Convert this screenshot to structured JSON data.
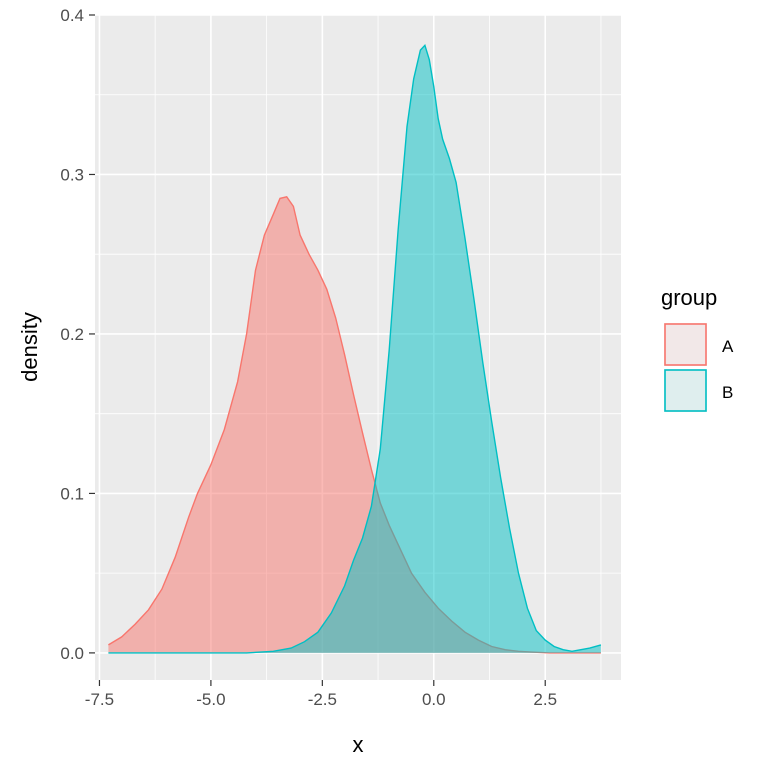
{
  "chart_data": {
    "type": "area",
    "xlabel": "x",
    "ylabel": "density",
    "xlim": [
      -7.6,
      4.2
    ],
    "ylim": [
      -0.017,
      0.4
    ],
    "x_ticks": [
      -7.5,
      -5.0,
      -2.5,
      0.0,
      2.5
    ],
    "x_tick_labels": [
      "-7.5",
      "-5.0",
      "-2.5",
      "0.0",
      "2.5"
    ],
    "y_ticks": [
      0.0,
      0.1,
      0.2,
      0.3,
      0.4
    ],
    "y_tick_labels": [
      "0.0",
      "0.1",
      "0.2",
      "0.3",
      "0.4"
    ],
    "grid": true,
    "legend": {
      "title": "group",
      "position": "right"
    },
    "series": [
      {
        "name": "A",
        "line_color": "#F8766D",
        "fill_color": "#F8766D",
        "x": [
          -7.3,
          -7.0,
          -6.7,
          -6.4,
          -6.1,
          -5.8,
          -5.5,
          -5.3,
          -5.0,
          -4.7,
          -4.4,
          -4.2,
          -4.0,
          -3.8,
          -3.6,
          -3.45,
          -3.3,
          -3.15,
          -3.0,
          -2.8,
          -2.6,
          -2.4,
          -2.2,
          -2.0,
          -1.8,
          -1.6,
          -1.4,
          -1.2,
          -1.0,
          -0.8,
          -0.5,
          -0.2,
          0.1,
          0.4,
          0.7,
          1.0,
          1.3,
          1.6,
          1.9,
          2.2,
          2.6,
          3.0,
          3.4,
          3.75
        ],
        "y": [
          0.005,
          0.01,
          0.018,
          0.027,
          0.04,
          0.06,
          0.085,
          0.1,
          0.118,
          0.14,
          0.17,
          0.2,
          0.24,
          0.262,
          0.275,
          0.285,
          0.286,
          0.28,
          0.262,
          0.25,
          0.24,
          0.228,
          0.21,
          0.187,
          0.162,
          0.138,
          0.115,
          0.094,
          0.08,
          0.068,
          0.05,
          0.038,
          0.028,
          0.02,
          0.013,
          0.008,
          0.004,
          0.002,
          0.001,
          0.0005,
          0.0,
          0.0,
          0.0,
          0.0
        ]
      },
      {
        "name": "B",
        "line_color": "#00BFC4",
        "fill_color": "#00BFC4",
        "x": [
          -7.3,
          -6.0,
          -5.0,
          -4.2,
          -3.6,
          -3.2,
          -2.9,
          -2.6,
          -2.3,
          -2.0,
          -1.8,
          -1.6,
          -1.4,
          -1.2,
          -1.0,
          -0.8,
          -0.6,
          -0.45,
          -0.3,
          -0.2,
          -0.1,
          0.0,
          0.1,
          0.2,
          0.35,
          0.5,
          0.7,
          0.9,
          1.1,
          1.3,
          1.5,
          1.7,
          1.9,
          2.1,
          2.3,
          2.5,
          2.7,
          2.9,
          3.1,
          3.3,
          3.5,
          3.75
        ],
        "y": [
          0.0,
          0.0,
          0.0,
          0.0,
          0.001,
          0.003,
          0.007,
          0.013,
          0.025,
          0.042,
          0.058,
          0.072,
          0.092,
          0.128,
          0.19,
          0.265,
          0.33,
          0.36,
          0.378,
          0.381,
          0.372,
          0.355,
          0.335,
          0.322,
          0.31,
          0.295,
          0.26,
          0.222,
          0.182,
          0.145,
          0.11,
          0.078,
          0.05,
          0.028,
          0.014,
          0.008,
          0.004,
          0.002,
          0.001,
          0.002,
          0.003,
          0.005
        ]
      }
    ]
  }
}
